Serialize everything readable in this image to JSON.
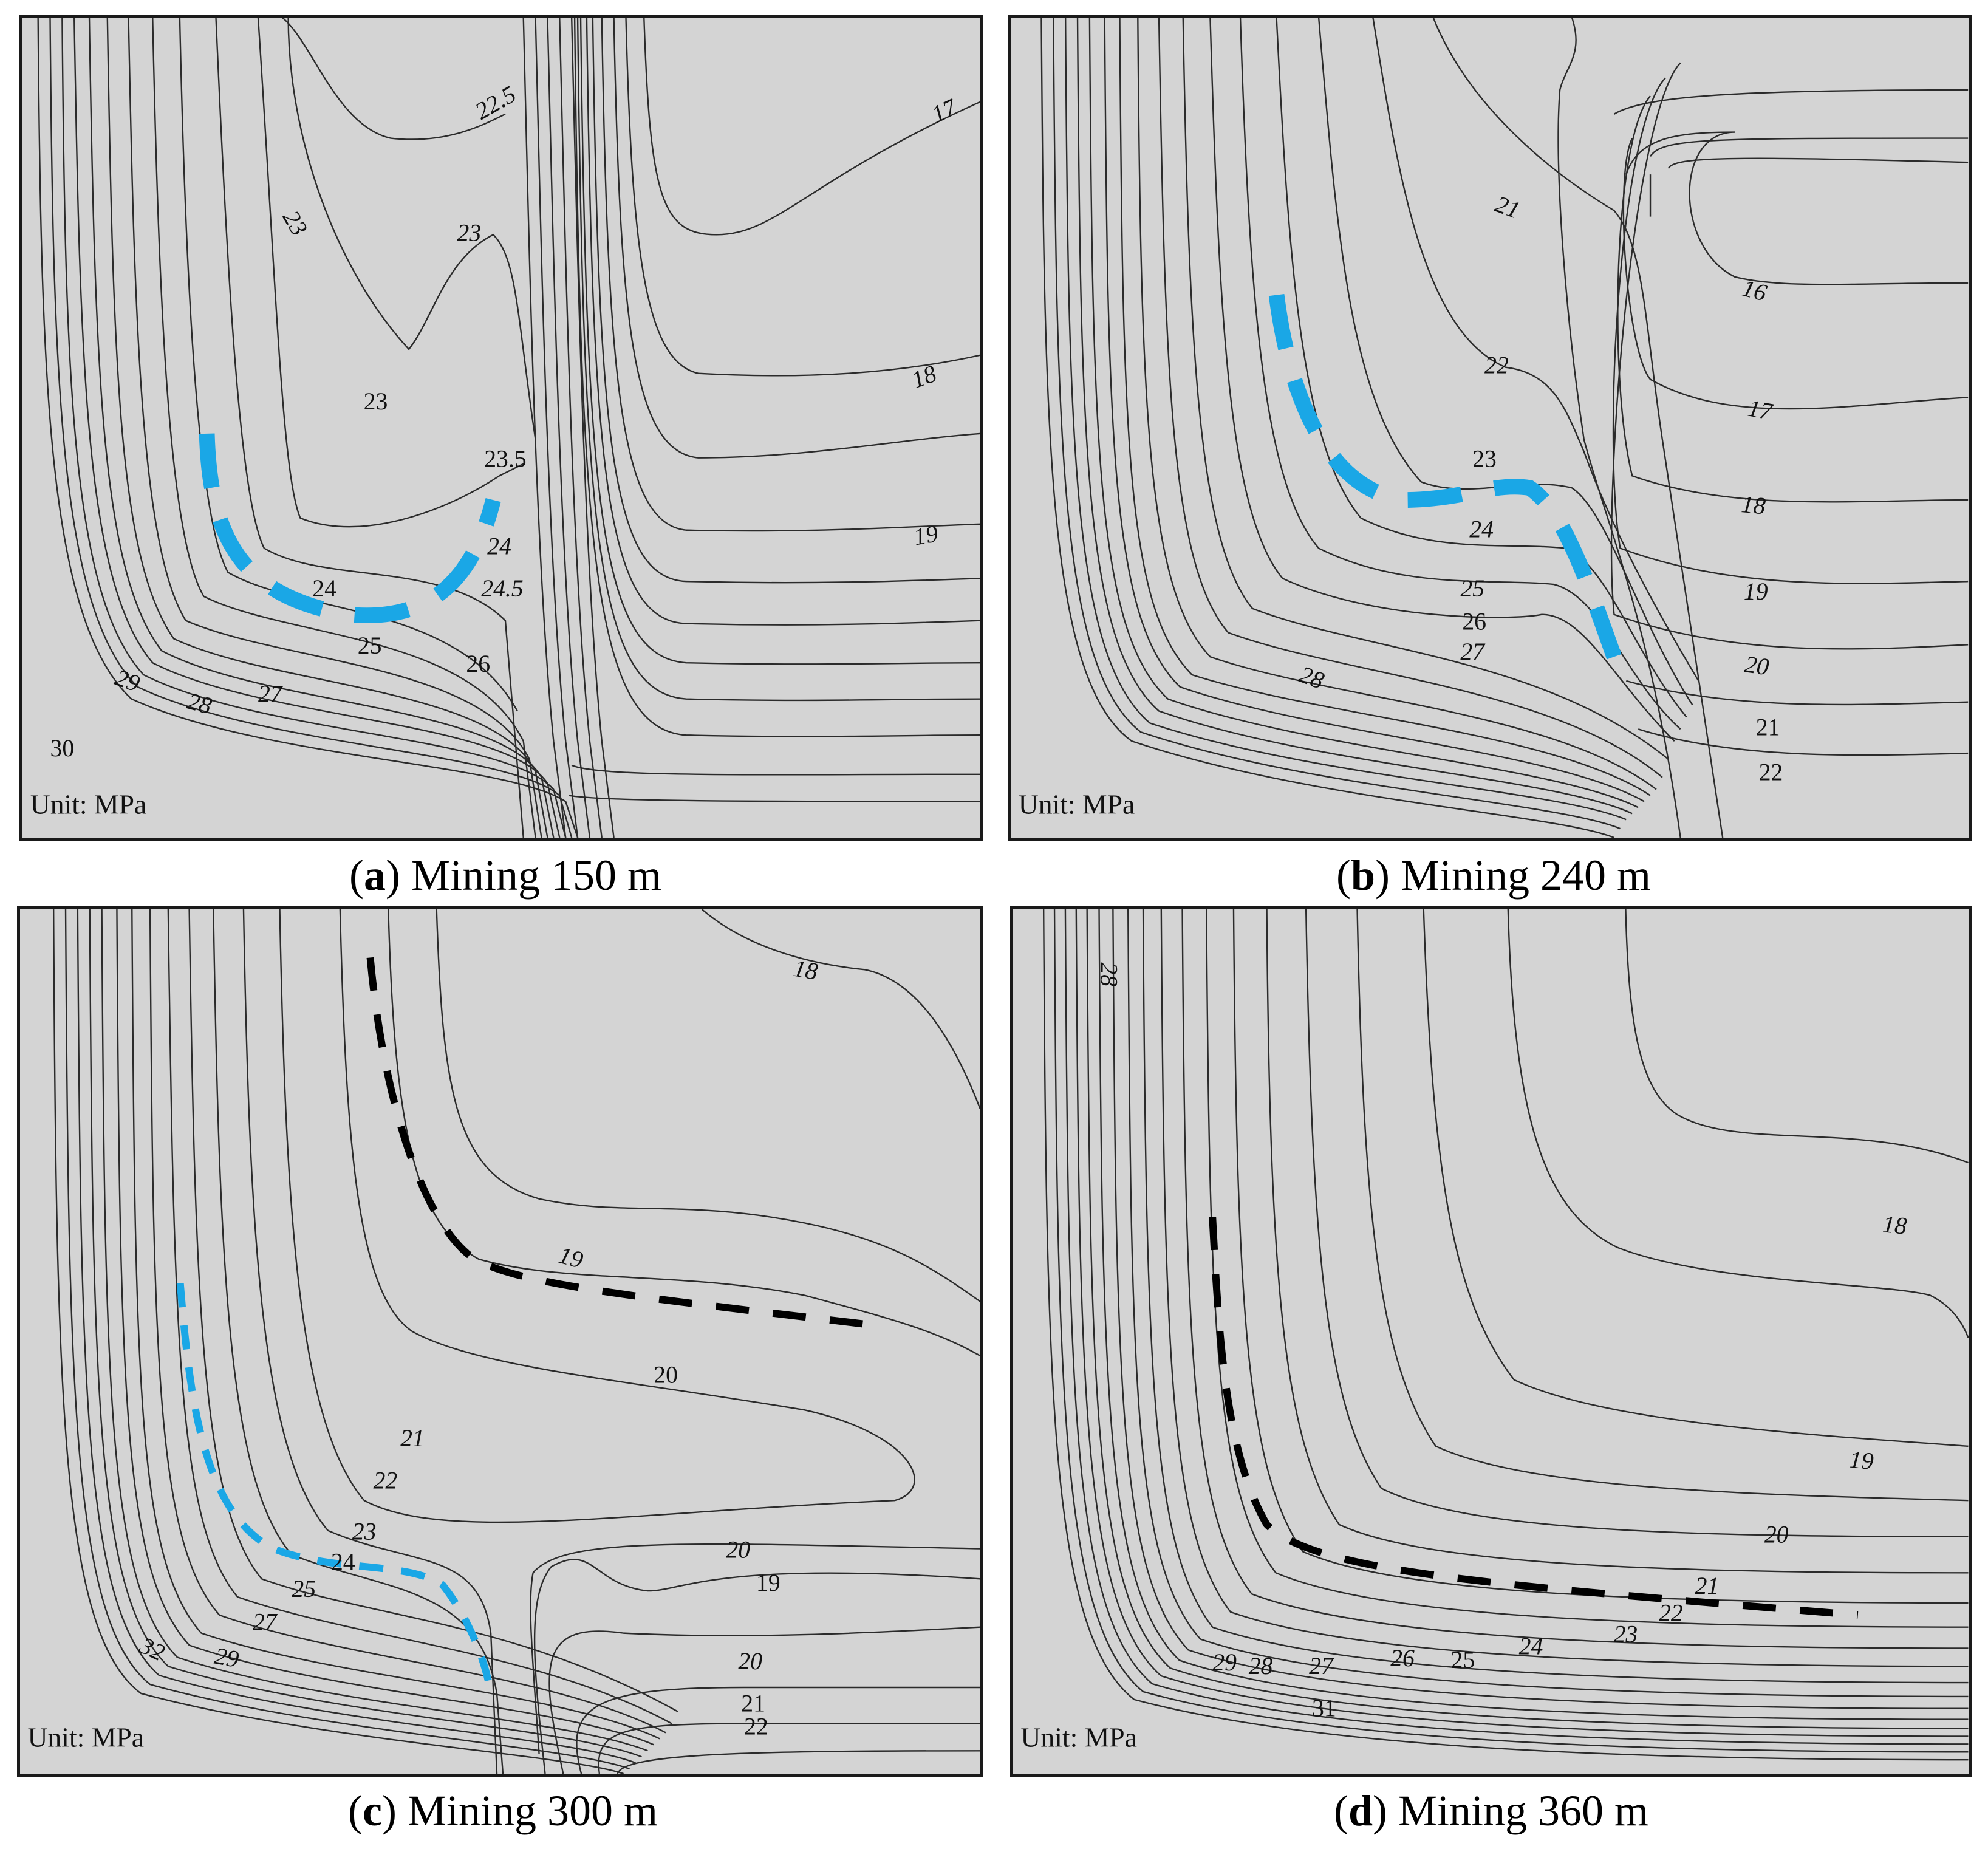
{
  "panels": [
    {
      "id": "a",
      "caption_letter": "a",
      "caption_text": "Mining 150 m",
      "unit": "Unit: MPa",
      "labels": [
        "22.5",
        "17",
        "23",
        "23",
        "23",
        "18",
        "23.5",
        "24",
        "19",
        "24",
        "24.5",
        "25",
        "26",
        "29",
        "28",
        "27",
        "30"
      ]
    },
    {
      "id": "b",
      "caption_letter": "b",
      "caption_text": "Mining 240 m",
      "unit": "Unit: MPa",
      "labels": [
        "21",
        "16",
        "22",
        "17",
        "23",
        "18",
        "24",
        "25",
        "19",
        "26",
        "27",
        "20",
        "28",
        "21",
        "22"
      ]
    },
    {
      "id": "c",
      "caption_letter": "c",
      "caption_text": "Mining 300 m",
      "unit": "Unit: MPa",
      "labels": [
        "18",
        "19",
        "20",
        "21",
        "22",
        "23",
        "20",
        "24",
        "19",
        "25",
        "27",
        "32",
        "29",
        "20",
        "21",
        "22"
      ]
    },
    {
      "id": "d",
      "caption_letter": "d",
      "caption_text": "Mining 360 m",
      "unit": "Unit: MPa",
      "labels": [
        "28",
        "18",
        "19",
        "20",
        "21",
        "22",
        "23",
        "24",
        "29",
        "28",
        "27",
        "26",
        "25",
        "31"
      ]
    }
  ],
  "colors": {
    "background": "#d4d4d4",
    "contour": "#2b2b2b",
    "blue_dash": "#1aa7e6",
    "black_dash": "#000000"
  }
}
